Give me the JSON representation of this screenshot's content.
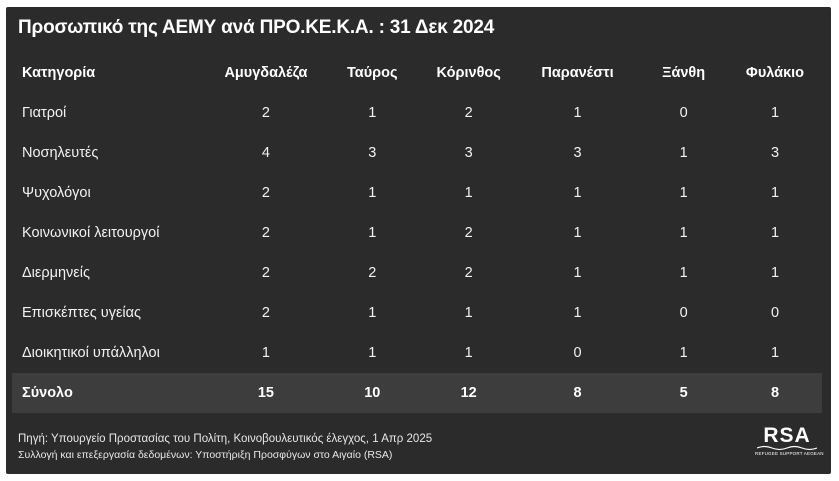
{
  "title": "Προσωπικό της ΑΕΜΥ ανά ΠΡΟ.ΚΕ.Κ.Α. : 31 Δεκ 2024",
  "table": {
    "headers": [
      "Κατηγορία",
      "Αμυγδαλέζα",
      "Ταύρος",
      "Κόρινθος",
      "Παρανέστι",
      "Ξάνθη",
      "Φυλάκιο"
    ],
    "rows": [
      {
        "label": "Γιατροί",
        "values": [
          "2",
          "1",
          "2",
          "1",
          "0",
          "1"
        ]
      },
      {
        "label": "Νοσηλευτές",
        "values": [
          "4",
          "3",
          "3",
          "3",
          "1",
          "3"
        ]
      },
      {
        "label": "Ψυχολόγοι",
        "values": [
          "2",
          "1",
          "1",
          "1",
          "1",
          "1"
        ]
      },
      {
        "label": "Κοινωνικοί λειτουργοί",
        "values": [
          "2",
          "1",
          "2",
          "1",
          "1",
          "1"
        ]
      },
      {
        "label": "Διερμηνείς",
        "values": [
          "2",
          "2",
          "2",
          "1",
          "1",
          "1"
        ]
      },
      {
        "label": "Επισκέπτες υγείας",
        "values": [
          "2",
          "1",
          "1",
          "1",
          "0",
          "0"
        ]
      },
      {
        "label": "Διοικητικοί υπάλληλοι",
        "values": [
          "1",
          "1",
          "1",
          "0",
          "1",
          "1"
        ]
      }
    ],
    "total": {
      "label": "Σύνολο",
      "values": [
        "15",
        "10",
        "12",
        "8",
        "5",
        "8"
      ]
    }
  },
  "footer": {
    "source": "Πηγή: Υπουργείο Προστασίας του Πολίτη, Κοινοβουλευτικός έλεγχος, 1 Απρ 2025",
    "credit": "Συλλογή και επεξεργασία δεδομένων: Υποστήριξη Προσφύγων στο Αιγαίο (RSA)"
  },
  "logo": {
    "mark": "RSA",
    "subtitle": "REFUGEE SUPPORT AEGEAN"
  },
  "colors": {
    "background": "#2b2b2b",
    "total_row": "#3d3d3d",
    "text": "#f2f2f2"
  }
}
